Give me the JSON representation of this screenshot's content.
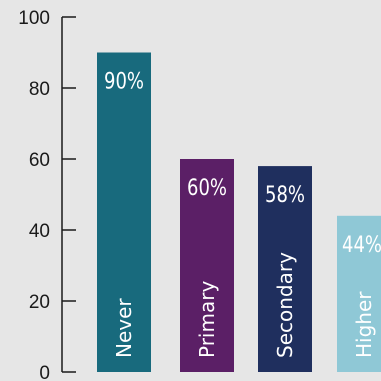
{
  "chart_data": {
    "type": "bar",
    "title": "",
    "xlabel": "",
    "ylabel": "",
    "ylim": [
      0,
      100
    ],
    "yticks": [
      0,
      20,
      40,
      60,
      80,
      100
    ],
    "grid": false,
    "legend": "none",
    "categories": [
      "Never",
      "Primary",
      "Secondary",
      "Higher"
    ],
    "values": [
      90,
      60,
      58,
      44
    ],
    "value_labels": [
      "90%",
      "60%",
      "58%",
      "44%"
    ],
    "colors": [
      "#186a7d",
      "#5b1f66",
      "#1f2f5e",
      "#8fc8d6"
    ],
    "axis_color": "#1a1a1a",
    "background": "#e6e6e6"
  }
}
